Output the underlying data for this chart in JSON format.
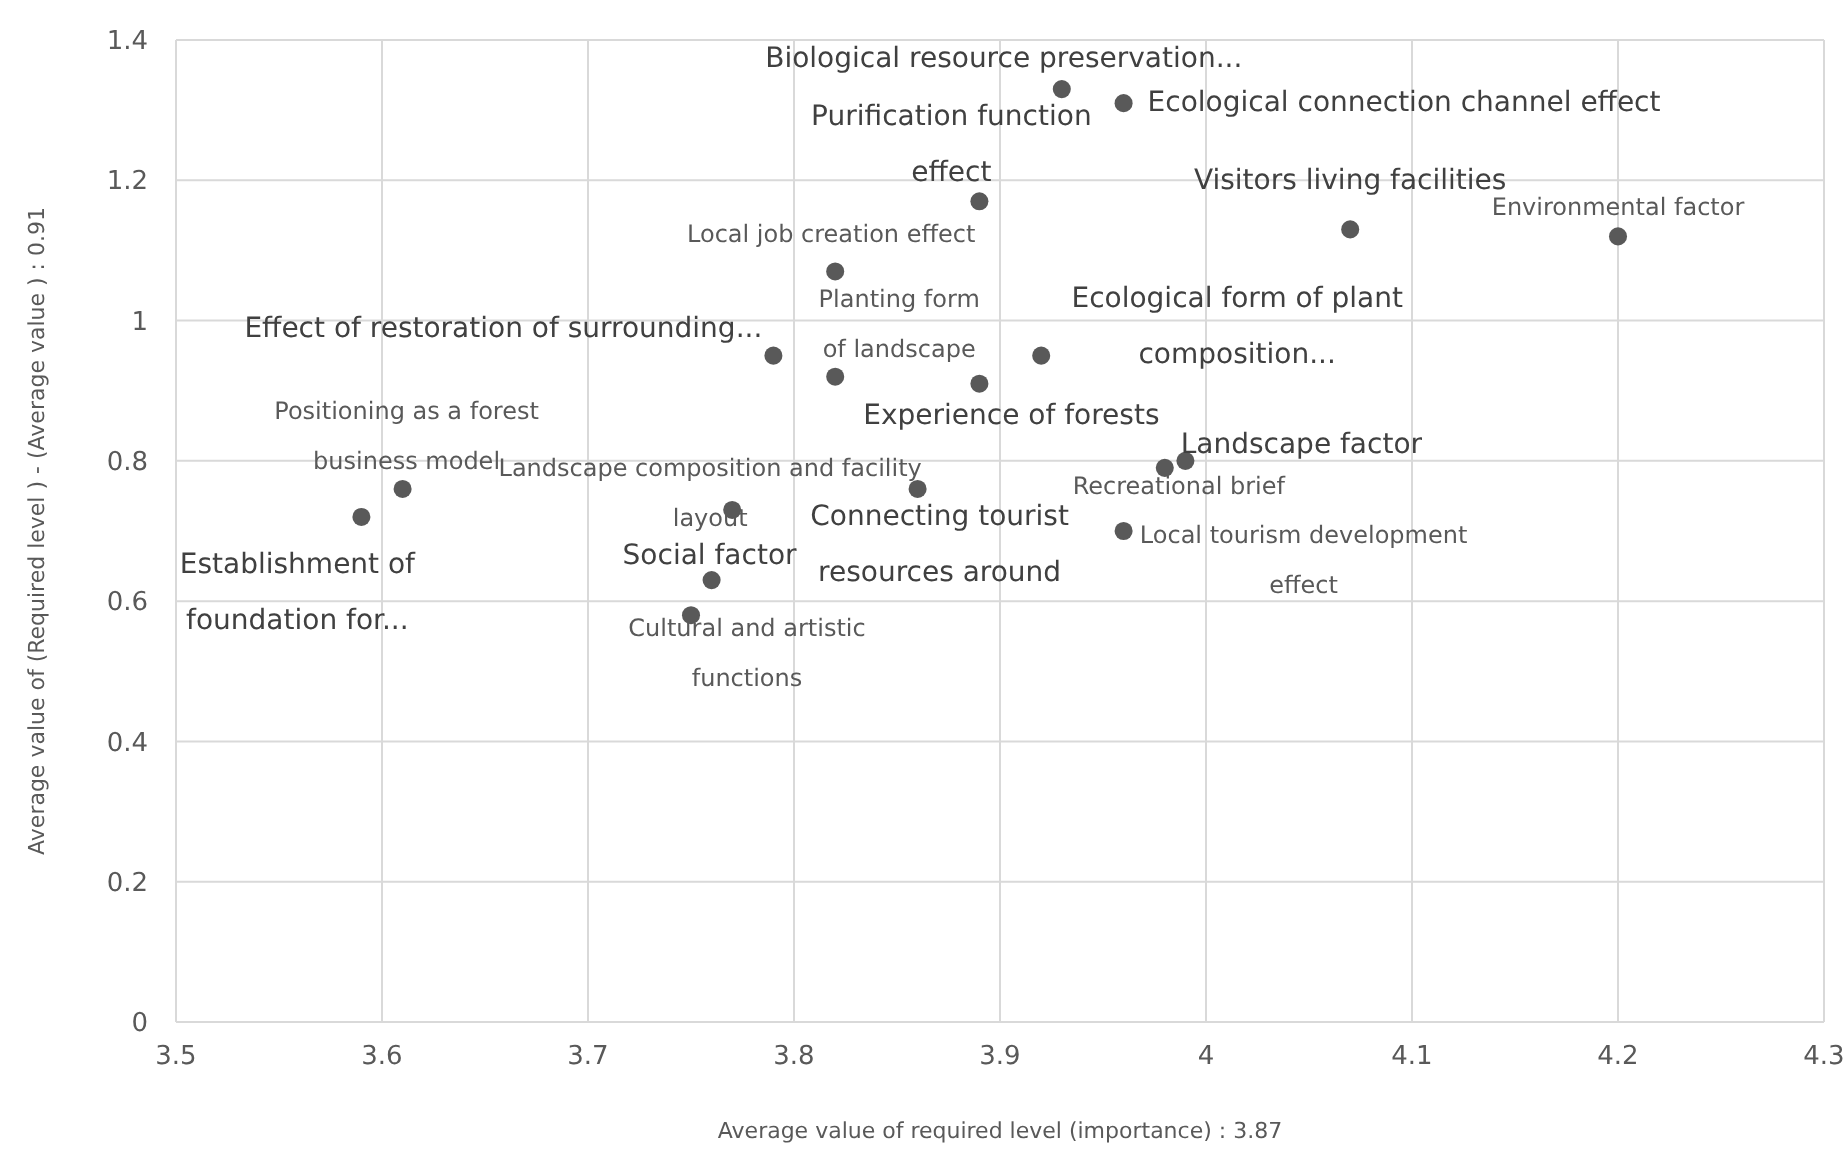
{
  "chart_data": {
    "type": "scatter",
    "xlabel": "Average value of required level (importance) : 3.87",
    "ylabel": "Average value of (Required level ) - (Average value ) : 0.91",
    "x": [
      3.59,
      3.61,
      3.77,
      3.76,
      3.75,
      3.79,
      3.82,
      3.82,
      3.89,
      3.89,
      3.86,
      3.93,
      3.96,
      3.92,
      3.98,
      3.99,
      3.96,
      4.07,
      4.2
    ],
    "series": [
      {
        "color": "#595959",
        "values": [
          0.72,
          0.76,
          0.73,
          0.63,
          0.58,
          0.95,
          1.07,
          0.92,
          1.17,
          0.91,
          0.76,
          1.33,
          1.31,
          0.95,
          0.79,
          0.8,
          0.7,
          1.13,
          1.12
        ]
      }
    ],
    "xlim": [
      3.5,
      4.3
    ],
    "xticks": [
      3.5,
      3.6,
      3.7,
      3.8,
      3.9,
      4,
      4.1,
      4.2,
      4.3
    ],
    "ylim": [
      0,
      1.4
    ],
    "yticks": [
      0,
      0.2,
      0.4,
      0.6,
      0.8,
      1,
      1.2,
      1.4
    ],
    "grid": true,
    "marker": "circle",
    "annotations": [
      {
        "text": "Establishment of foundation for...",
        "x": 3.59,
        "y": 0.72
      },
      {
        "text": "Positioning as a forest business model",
        "x": 3.61,
        "y": 0.76
      },
      {
        "text": "Landscape composition and facility layout",
        "x": 3.77,
        "y": 0.73
      },
      {
        "text": "Social factor",
        "x": 3.76,
        "y": 0.63
      },
      {
        "text": "Cultural and artistic functions",
        "x": 3.75,
        "y": 0.58
      },
      {
        "text": "Effect of restoration of surrounding...",
        "x": 3.79,
        "y": 0.95
      },
      {
        "text": "Local job creation effect",
        "x": 3.82,
        "y": 1.07
      },
      {
        "text": "Planting form of landscape",
        "x": 3.82,
        "y": 0.92
      },
      {
        "text": "Purification function effect",
        "x": 3.89,
        "y": 1.17
      },
      {
        "text": "Experience of forests",
        "x": 3.89,
        "y": 0.91
      },
      {
        "text": "Connecting tourist resources around",
        "x": 3.86,
        "y": 0.76
      },
      {
        "text": "Biological resource preservation...",
        "x": 3.93,
        "y": 1.33
      },
      {
        "text": "Ecological connection channel effect",
        "x": 3.96,
        "y": 1.31
      },
      {
        "text": "Ecological form of plant composition...",
        "x": 3.92,
        "y": 0.95
      },
      {
        "text": "Recreational brief",
        "x": 3.98,
        "y": 0.79
      },
      {
        "text": "Landscape factor",
        "x": 3.99,
        "y": 0.8
      },
      {
        "text": "Local tourism development effect",
        "x": 3.96,
        "y": 0.7
      },
      {
        "text": "Visitors living facilities",
        "x": 4.07,
        "y": 1.13
      },
      {
        "text": "Environmental factor",
        "x": 4.2,
        "y": 1.12
      }
    ]
  }
}
